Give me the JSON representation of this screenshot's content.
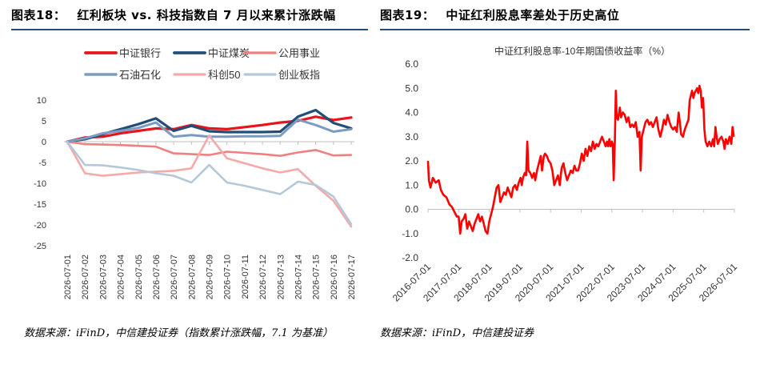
{
  "left": {
    "figure_label": "图表18：",
    "figure_title": "红利板块 vs. 科技指数自 7 月以来累计涨跌幅",
    "source": "数据来源：iFinD，中信建投证券（指数累计涨跌幅，7.1 为基准）",
    "chart_data": {
      "type": "line",
      "title": "",
      "xlabel": "",
      "ylabel": "",
      "x": [
        "2026-07-01",
        "2026-07-02",
        "2026-07-03",
        "2026-07-04",
        "2026-07-05",
        "2026-07-06",
        "2026-07-07",
        "2026-07-08",
        "2026-07-09",
        "2026-07-10",
        "2026-07-11",
        "2026-07-12",
        "2026-07-13",
        "2026-07-14",
        "2026-07-15",
        "2026-07-16",
        "2026-07-17"
      ],
      "ylim": [
        -25,
        10
      ],
      "yticks": [
        10,
        5,
        0,
        -5,
        -10,
        -15,
        -20,
        -25
      ],
      "legend_position": "top",
      "series": [
        {
          "name": "中证银行",
          "color": "#e8141b",
          "width": 3.2,
          "values": [
            0,
            1.0,
            1.2,
            2.0,
            2.6,
            3.2,
            3.0,
            4.0,
            3.2,
            3.0,
            3.5,
            4.0,
            4.6,
            5.0,
            6.0,
            5.2,
            5.8
          ]
        },
        {
          "name": "中证煤炭",
          "color": "#1f4e79",
          "width": 3.2,
          "values": [
            0,
            0.6,
            1.8,
            3.0,
            4.2,
            5.6,
            2.6,
            3.8,
            2.5,
            2.3,
            2.3,
            2.3,
            2.4,
            6.0,
            7.6,
            4.5,
            3.2
          ]
        },
        {
          "name": "公用事业",
          "color": "#f08080",
          "width": 2.6,
          "values": [
            0,
            -0.6,
            -0.7,
            -0.8,
            -1.0,
            -1.2,
            -2.8,
            -3.0,
            -3.2,
            -2.4,
            -2.7,
            -3.0,
            -3.4,
            -2.6,
            -2.0,
            -3.3,
            -3.2
          ]
        },
        {
          "name": "石油石化",
          "color": "#7b9cc0",
          "width": 3.0,
          "values": [
            0,
            0.8,
            2.0,
            2.6,
            3.3,
            4.6,
            1.2,
            1.6,
            1.2,
            1.2,
            1.3,
            1.3,
            1.4,
            5.3,
            4.0,
            2.4,
            3.0
          ]
        },
        {
          "name": "科创50",
          "color": "#f6a9a9",
          "width": 2.6,
          "values": [
            0,
            -7.6,
            -8.2,
            -7.8,
            -7.4,
            -7.2,
            -7.0,
            -6.4,
            1.5,
            -4.0,
            -5.2,
            -6.4,
            -7.4,
            -6.6,
            -10.6,
            -14.2,
            -20.4
          ]
        },
        {
          "name": "创业板指",
          "color": "#b5c8da",
          "width": 2.6,
          "values": [
            0,
            -5.6,
            -5.7,
            -6.2,
            -6.8,
            -7.6,
            -8.2,
            -9.8,
            -5.6,
            -9.8,
            -10.6,
            -11.6,
            -12.6,
            -9.6,
            -10.4,
            -13.2,
            -19.8
          ]
        }
      ]
    }
  },
  "right": {
    "figure_label": "图表19：",
    "figure_title": "中证红利股息率差处于历史高位",
    "source": "数据来源：iFinD，中信建投证券",
    "chart_data": {
      "type": "line",
      "title": "中证红利股息率-10年期国债收益率（%）",
      "xlabel": "",
      "ylabel": "",
      "ylim": [
        -2.0,
        6.0
      ],
      "yticks": [
        "6.0",
        "5.0",
        "4.0",
        "3.0",
        "2.0",
        "1.0",
        "0.0",
        "-1.0",
        "-2.0"
      ],
      "xticks": [
        "2016-07-01",
        "2017-07-01",
        "2018-07-01",
        "2019-07-01",
        "2020-07-01",
        "2021-07-01",
        "2022-07-01",
        "2023-07-01",
        "2024-07-01",
        "2025-07-01",
        "2026-07-01"
      ],
      "xlim": [
        2016.5,
        2026.5
      ],
      "color": "#ff0000",
      "points": [
        [
          2016.5,
          2.0
        ],
        [
          2016.53,
          1.2
        ],
        [
          2016.58,
          0.9
        ],
        [
          2016.66,
          1.3
        ],
        [
          2016.75,
          1.1
        ],
        [
          2016.85,
          1.2
        ],
        [
          2016.92,
          0.8
        ],
        [
          2017.0,
          0.6
        ],
        [
          2017.1,
          0.5
        ],
        [
          2017.2,
          0.2
        ],
        [
          2017.28,
          0.1
        ],
        [
          2017.36,
          -0.1
        ],
        [
          2017.44,
          -0.3
        ],
        [
          2017.5,
          -0.3
        ],
        [
          2017.55,
          -1.0
        ],
        [
          2017.6,
          -0.5
        ],
        [
          2017.66,
          -0.4
        ],
        [
          2017.72,
          -0.2
        ],
        [
          2017.78,
          -0.8
        ],
        [
          2017.84,
          -0.5
        ],
        [
          2017.9,
          -0.7
        ],
        [
          2017.96,
          -0.9
        ],
        [
          2018.02,
          -0.6
        ],
        [
          2018.08,
          -0.4
        ],
        [
          2018.14,
          -0.2
        ],
        [
          2018.2,
          -0.5
        ],
        [
          2018.26,
          -0.3
        ],
        [
          2018.32,
          -0.6
        ],
        [
          2018.38,
          -0.9
        ],
        [
          2018.44,
          -1.0
        ],
        [
          2018.5,
          -0.5
        ],
        [
          2018.56,
          -0.2
        ],
        [
          2018.62,
          0.1
        ],
        [
          2018.68,
          0.5
        ],
        [
          2018.74,
          0.9
        ],
        [
          2018.8,
          1.0
        ],
        [
          2018.86,
          0.3
        ],
        [
          2018.92,
          0.5
        ],
        [
          2018.98,
          0.7
        ],
        [
          2019.04,
          0.6
        ],
        [
          2019.1,
          0.9
        ],
        [
          2019.16,
          0.7
        ],
        [
          2019.22,
          0.5
        ],
        [
          2019.28,
          0.9
        ],
        [
          2019.34,
          1.0
        ],
        [
          2019.4,
          0.8
        ],
        [
          2019.46,
          1.1
        ],
        [
          2019.52,
          1.3
        ],
        [
          2019.56,
          1.0
        ],
        [
          2019.6,
          1.3
        ],
        [
          2019.66,
          1.5
        ],
        [
          2019.7,
          1.4
        ],
        [
          2019.74,
          2.8
        ],
        [
          2019.78,
          1.6
        ],
        [
          2019.84,
          1.5
        ],
        [
          2019.9,
          1.3
        ],
        [
          2019.96,
          1.5
        ],
        [
          2020.0,
          1.2
        ],
        [
          2020.06,
          1.6
        ],
        [
          2020.12,
          1.9
        ],
        [
          2020.18,
          2.2
        ],
        [
          2020.22,
          1.6
        ],
        [
          2020.28,
          2.2
        ],
        [
          2020.32,
          2.3
        ],
        [
          2020.38,
          2.2
        ],
        [
          2020.44,
          2.0
        ],
        [
          2020.5,
          1.9
        ],
        [
          2020.56,
          1.6
        ],
        [
          2020.62,
          1.0
        ],
        [
          2020.68,
          1.2
        ],
        [
          2020.74,
          1.4
        ],
        [
          2020.8,
          1.0
        ],
        [
          2020.86,
          1.7
        ],
        [
          2020.92,
          1.9
        ],
        [
          2020.98,
          1.5
        ],
        [
          2021.04,
          1.2
        ],
        [
          2021.1,
          1.4
        ],
        [
          2021.16,
          1.6
        ],
        [
          2021.22,
          1.5
        ],
        [
          2021.28,
          1.8
        ],
        [
          2021.34,
          1.6
        ],
        [
          2021.4,
          1.6
        ],
        [
          2021.46,
          1.9
        ],
        [
          2021.52,
          2.3
        ],
        [
          2021.58,
          2.0
        ],
        [
          2021.64,
          2.5
        ],
        [
          2021.7,
          2.2
        ],
        [
          2021.76,
          2.6
        ],
        [
          2021.82,
          2.4
        ],
        [
          2021.88,
          2.8
        ],
        [
          2021.94,
          2.5
        ],
        [
          2022.0,
          2.7
        ],
        [
          2022.06,
          2.6
        ],
        [
          2022.12,
          2.8
        ],
        [
          2022.18,
          3.0
        ],
        [
          2022.24,
          2.8
        ],
        [
          2022.3,
          2.6
        ],
        [
          2022.34,
          2.8
        ],
        [
          2022.38,
          2.6
        ],
        [
          2022.42,
          2.9
        ],
        [
          2022.46,
          2.6
        ],
        [
          2022.5,
          2.8
        ],
        [
          2022.53,
          2.7
        ],
        [
          2022.56,
          1.2
        ],
        [
          2022.6,
          2.9
        ],
        [
          2022.63,
          4.9
        ],
        [
          2022.66,
          3.8
        ],
        [
          2022.7,
          3.7
        ],
        [
          2022.76,
          4.2
        ],
        [
          2022.8,
          3.8
        ],
        [
          2022.86,
          4.0
        ],
        [
          2022.92,
          3.9
        ],
        [
          2022.98,
          3.6
        ],
        [
          2023.04,
          3.8
        ],
        [
          2023.1,
          3.4
        ],
        [
          2023.16,
          3.5
        ],
        [
          2023.22,
          3.4
        ],
        [
          2023.28,
          3.6
        ],
        [
          2023.34,
          3.0
        ],
        [
          2023.4,
          3.2
        ],
        [
          2023.44,
          1.6
        ],
        [
          2023.48,
          3.0
        ],
        [
          2023.54,
          3.3
        ],
        [
          2023.6,
          3.6
        ],
        [
          2023.66,
          3.7
        ],
        [
          2023.72,
          3.5
        ],
        [
          2023.78,
          3.6
        ],
        [
          2023.84,
          3.4
        ],
        [
          2023.9,
          3.6
        ],
        [
          2023.96,
          3.8
        ],
        [
          2024.02,
          3.3
        ],
        [
          2024.08,
          3.0
        ],
        [
          2024.14,
          3.3
        ],
        [
          2024.2,
          3.7
        ],
        [
          2024.26,
          3.5
        ],
        [
          2024.32,
          3.9
        ],
        [
          2024.38,
          3.6
        ],
        [
          2024.44,
          3.4
        ],
        [
          2024.5,
          3.3
        ],
        [
          2024.56,
          3.4
        ],
        [
          2024.62,
          3.2
        ],
        [
          2024.68,
          4.0
        ],
        [
          2024.72,
          3.6
        ],
        [
          2024.76,
          3.1
        ],
        [
          2024.82,
          3.0
        ],
        [
          2024.88,
          3.3
        ],
        [
          2024.94,
          3.5
        ],
        [
          2025.0,
          3.7
        ],
        [
          2025.04,
          4.5
        ],
        [
          2025.08,
          4.7
        ],
        [
          2025.12,
          4.9
        ],
        [
          2025.16,
          4.6
        ],
        [
          2025.2,
          4.8
        ],
        [
          2025.24,
          4.9
        ],
        [
          2025.28,
          5.0
        ],
        [
          2025.32,
          4.8
        ],
        [
          2025.36,
          5.1
        ],
        [
          2025.4,
          4.9
        ],
        [
          2025.44,
          4.2
        ],
        [
          2025.48,
          4.6
        ],
        [
          2025.52,
          3.3
        ],
        [
          2025.56,
          2.8
        ],
        [
          2025.62,
          2.6
        ],
        [
          2025.68,
          2.8
        ],
        [
          2025.74,
          2.6
        ],
        [
          2025.8,
          2.9
        ],
        [
          2025.84,
          2.6
        ],
        [
          2025.88,
          3.4
        ],
        [
          2025.92,
          3.0
        ],
        [
          2025.96,
          2.7
        ],
        [
          2026.02,
          2.9
        ],
        [
          2026.08,
          3.0
        ],
        [
          2026.14,
          2.8
        ],
        [
          2026.18,
          2.5
        ],
        [
          2026.22,
          2.9
        ],
        [
          2026.28,
          2.7
        ],
        [
          2026.34,
          3.0
        ],
        [
          2026.4,
          2.7
        ],
        [
          2026.44,
          3.4
        ],
        [
          2026.48,
          3.0
        ]
      ]
    }
  }
}
